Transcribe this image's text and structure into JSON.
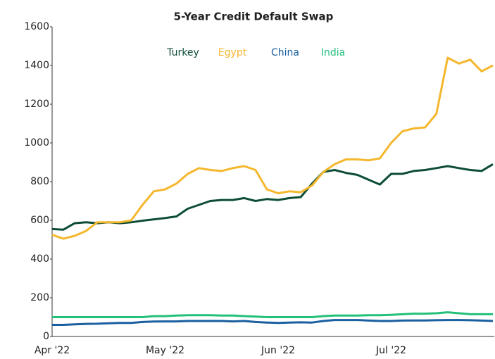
{
  "chart_data": {
    "type": "line",
    "title": "5-Year Credit Default Swap",
    "categories": [
      "Apr '22",
      null,
      null,
      null,
      null,
      null,
      null,
      null,
      null,
      null,
      "May '22",
      null,
      null,
      null,
      null,
      null,
      null,
      null,
      null,
      null,
      "Jun '22",
      null,
      null,
      null,
      null,
      null,
      null,
      null,
      null,
      null,
      "Jul '22",
      null,
      null,
      null,
      null,
      null,
      null,
      null,
      null,
      null
    ],
    "series": [
      {
        "name": "Turkey",
        "color": "#0d4d35",
        "values": [
          555,
          552,
          585,
          590,
          585,
          590,
          585,
          590,
          598,
          605,
          612,
          620,
          660,
          680,
          700,
          705,
          705,
          715,
          700,
          710,
          705,
          715,
          720,
          790,
          850,
          860,
          845,
          835,
          810,
          785,
          840,
          840,
          855,
          860,
          870,
          880,
          870,
          860,
          855,
          890
        ]
      },
      {
        "name": "Egypt",
        "color": "#f5b72e",
        "values": [
          525,
          505,
          520,
          545,
          590,
          590,
          590,
          600,
          680,
          750,
          760,
          790,
          840,
          870,
          860,
          855,
          870,
          880,
          860,
          760,
          740,
          750,
          745,
          780,
          850,
          890,
          915,
          915,
          910,
          920,
          1000,
          1060,
          1075,
          1080,
          1150,
          1440,
          1410,
          1430,
          1370,
          1400
        ]
      },
      {
        "name": "China",
        "color": "#1a5fa0",
        "values": [
          60,
          60,
          63,
          65,
          66,
          68,
          70,
          70,
          75,
          77,
          78,
          78,
          80,
          80,
          80,
          80,
          78,
          80,
          75,
          72,
          70,
          72,
          73,
          72,
          80,
          85,
          85,
          85,
          82,
          80,
          80,
          82,
          83,
          83,
          84,
          85,
          85,
          84,
          82,
          80
        ]
      },
      {
        "name": "India",
        "color": "#23c07a",
        "values": [
          100,
          100,
          100,
          100,
          100,
          100,
          100,
          100,
          100,
          105,
          105,
          108,
          110,
          110,
          110,
          108,
          108,
          105,
          103,
          100,
          100,
          100,
          100,
          100,
          105,
          108,
          108,
          108,
          110,
          110,
          112,
          115,
          118,
          118,
          120,
          125,
          120,
          115,
          115,
          115
        ]
      }
    ],
    "ylim": [
      0,
      1600
    ],
    "yticks": [
      0,
      200,
      400,
      600,
      800,
      1000,
      1200,
      1400,
      1600
    ],
    "grid": false
  }
}
